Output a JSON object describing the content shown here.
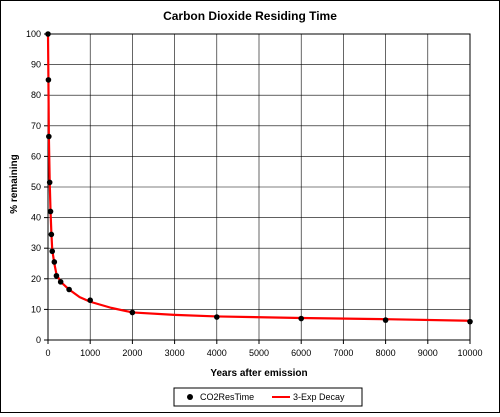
{
  "chart_data": {
    "type": "scatter",
    "title": "Carbon Dioxide Residing Time",
    "xlabel": "Years after emission",
    "ylabel": "% remaining",
    "xlim": [
      0,
      10000
    ],
    "ylim": [
      0,
      100
    ],
    "xticks": [
      0,
      1000,
      2000,
      3000,
      4000,
      5000,
      6000,
      7000,
      8000,
      9000,
      10000
    ],
    "yticks": [
      0,
      10,
      20,
      30,
      40,
      50,
      60,
      70,
      80,
      90,
      100
    ],
    "grid": true,
    "legend_position": "bottom",
    "series": [
      {
        "name": "CO2ResTime",
        "kind": "scatter",
        "color": "#000000",
        "x": [
          0,
          10,
          20,
          40,
          60,
          80,
          100,
          150,
          200,
          300,
          500,
          1000,
          2000,
          4000,
          6000,
          8000,
          10000
        ],
        "y": [
          100,
          85,
          66.5,
          51.5,
          42,
          34.5,
          29,
          25.5,
          21,
          19,
          16.5,
          13,
          9,
          7.5,
          7,
          6.5,
          6
        ]
      },
      {
        "name": "3-Exp Decay",
        "kind": "line",
        "color": "#ff0000",
        "x": [
          0,
          10,
          20,
          40,
          60,
          80,
          100,
          150,
          200,
          300,
          500,
          750,
          1000,
          1500,
          2000,
          3000,
          4000,
          6000,
          8000,
          10000
        ],
        "y": [
          100,
          85,
          67,
          52,
          42,
          35,
          29.5,
          25,
          21.5,
          19,
          16.5,
          14,
          12.5,
          10.5,
          9,
          8.2,
          7.7,
          7.2,
          6.8,
          6.3
        ]
      }
    ]
  }
}
